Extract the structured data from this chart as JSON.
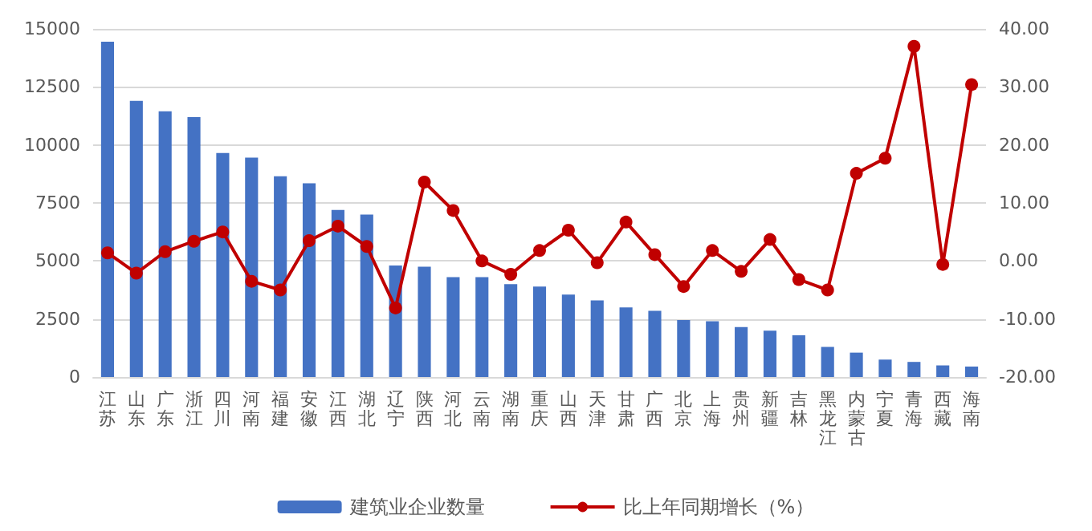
{
  "chart_data": {
    "type": "bar",
    "categories": [
      "江苏",
      "山东",
      "广东",
      "浙江",
      "四川",
      "河南",
      "福建",
      "安徽",
      "江西",
      "湖北",
      "辽宁",
      "陕西",
      "河北",
      "云南",
      "湖南",
      "重庆",
      "山西",
      "天津",
      "甘肃",
      "广西",
      "北京",
      "上海",
      "贵州",
      "新疆",
      "吉林",
      "黑龙江",
      "内蒙古",
      "宁夏",
      "青海",
      "西藏",
      "海南"
    ],
    "series": [
      {
        "name": "建筑业企业数量",
        "color": "#4472c4",
        "values": [
          14450,
          11900,
          11450,
          11200,
          9650,
          9450,
          8650,
          8350,
          7200,
          7000,
          4800,
          4750,
          4300,
          4300,
          4000,
          3900,
          3550,
          3300,
          3000,
          2850,
          2450,
          2400,
          2150,
          2000,
          1800,
          1300,
          1050,
          750,
          650,
          500,
          450
        ]
      },
      {
        "name": "比上年同期增长（%）",
        "type": "line",
        "axis": "y2",
        "color": "#c00000",
        "marker": "circle",
        "values": [
          1.4,
          -2.1,
          1.6,
          3.4,
          5.0,
          -3.5,
          -5.0,
          3.5,
          6.0,
          2.5,
          -8.1,
          13.6,
          8.7,
          0,
          -2.3,
          1.8,
          5.3,
          -0.3,
          6.7,
          1.1,
          -4.4,
          1.8,
          -1.8,
          3.7,
          -3.2,
          -5.0,
          15.1,
          17.7,
          37.0,
          -0.6,
          30.4
        ]
      }
    ],
    "ylim": [
      0,
      15000
    ],
    "yticks": [
      0,
      2500,
      5000,
      7500,
      10000,
      12500,
      15000
    ],
    "y2lim": [
      -20,
      40
    ],
    "y2ticks": [
      {
        "value": -20,
        "label": "-20.00"
      },
      {
        "value": -10,
        "label": "-10.00"
      },
      {
        "value": 0,
        "label": "0.00"
      },
      {
        "value": 10,
        "label": "10.00"
      },
      {
        "value": 20,
        "label": "20.00"
      },
      {
        "value": 30,
        "label": "30.00"
      },
      {
        "value": 40,
        "label": "40.00"
      }
    ],
    "grid": "y",
    "legend": "bottom"
  }
}
